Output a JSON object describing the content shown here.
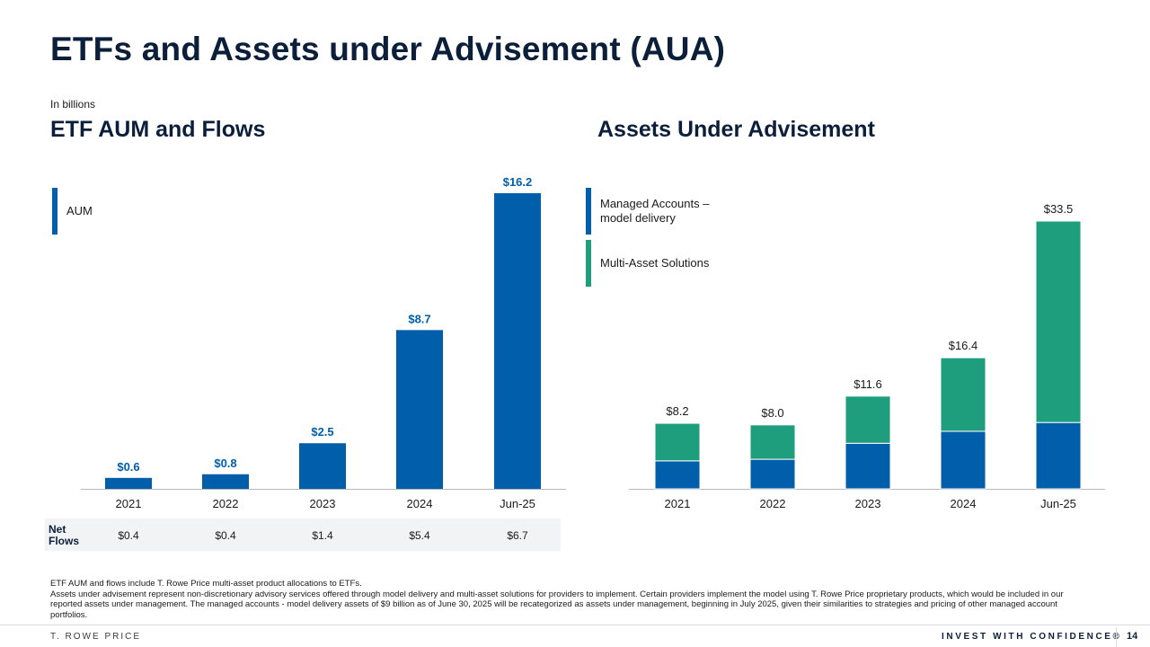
{
  "page": {
    "title": "ETFs and Assets under Advisement (AUA)",
    "unit_note": "In billions",
    "page_number": "14",
    "footer_left": "T. ROWE PRICE",
    "footer_right": "INVEST WITH CONFIDENCE®",
    "footnote_lines": [
      "ETF AUM and flows include T. Rowe Price multi-asset product allocations to ETFs.",
      "Assets under advisement represent non-discretionary advisory services offered through model delivery and multi-asset solutions for providers to implement.  Certain providers implement the model using T. Rowe Price proprietary products, which would be included in our reported assets under management. The managed accounts - model delivery assets of $9 billion as of June 30, 2025 will be recategorized as assets under management, beginning in July 2025, given their similarities to strategies and pricing of other managed account portfolios."
    ]
  },
  "colors": {
    "blue": "#005eab",
    "green": "#1f9e7d",
    "title": "#0b1f3a"
  },
  "net_flows": {
    "label_line1": "Net",
    "label_line2": "Flows",
    "values": [
      "$0.4",
      "$0.4",
      "$1.4",
      "$5.4",
      "$6.7"
    ]
  },
  "chart_data": [
    {
      "type": "bar",
      "title": "ETF AUM and Flows",
      "categories": [
        "2021",
        "2022",
        "2023",
        "2024",
        "Jun-25"
      ],
      "series": [
        {
          "name": "AUM",
          "values": [
            0.6,
            0.8,
            2.5,
            8.7,
            16.2
          ],
          "labels": [
            "$0.6",
            "$0.8",
            "$2.5",
            "$8.7",
            "$16.2"
          ]
        }
      ],
      "ylim": [
        0,
        16.2
      ],
      "legend": "top-left",
      "grid": false
    },
    {
      "type": "bar",
      "stacked": true,
      "title": "Assets Under Advisement",
      "categories": [
        "2021",
        "2022",
        "2023",
        "2024",
        "Jun-25"
      ],
      "series": [
        {
          "name": "Managed Accounts – model delivery",
          "values": [
            3.5,
            3.7,
            5.7,
            7.2,
            8.3
          ]
        },
        {
          "name": "Multi-Asset Solutions",
          "values": [
            4.7,
            4.3,
            5.9,
            9.2,
            25.2
          ]
        }
      ],
      "totals": [
        "$8.2",
        "$8.0",
        "$11.6",
        "$16.4",
        "$33.5"
      ],
      "ylim": [
        0,
        33.5
      ],
      "legend": "top-left",
      "grid": false
    }
  ]
}
